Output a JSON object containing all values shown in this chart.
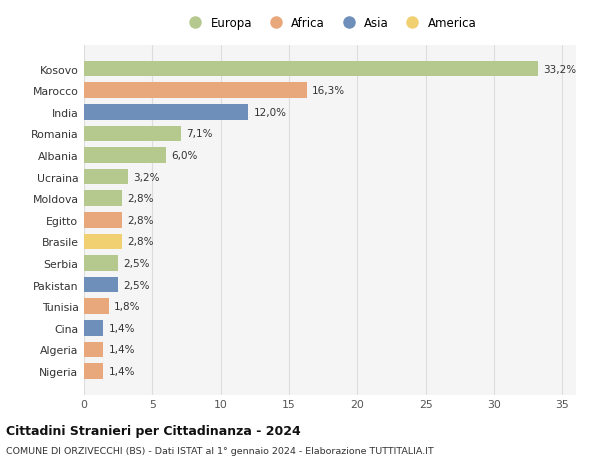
{
  "countries": [
    "Kosovo",
    "Marocco",
    "India",
    "Romania",
    "Albania",
    "Ucraina",
    "Moldova",
    "Egitto",
    "Brasile",
    "Serbia",
    "Pakistan",
    "Tunisia",
    "Cina",
    "Algeria",
    "Nigeria"
  ],
  "values": [
    33.2,
    16.3,
    12.0,
    7.1,
    6.0,
    3.2,
    2.8,
    2.8,
    2.8,
    2.5,
    2.5,
    1.8,
    1.4,
    1.4,
    1.4
  ],
  "labels": [
    "33,2%",
    "16,3%",
    "12,0%",
    "7,1%",
    "6,0%",
    "3,2%",
    "2,8%",
    "2,8%",
    "2,8%",
    "2,5%",
    "2,5%",
    "1,8%",
    "1,4%",
    "1,4%",
    "1,4%"
  ],
  "continents": [
    "Europa",
    "Africa",
    "Asia",
    "Europa",
    "Europa",
    "Europa",
    "Europa",
    "Africa",
    "America",
    "Europa",
    "Asia",
    "Africa",
    "Asia",
    "Africa",
    "Africa"
  ],
  "colors": {
    "Europa": "#b5c98e",
    "Africa": "#e8a87c",
    "Asia": "#6e8fba",
    "America": "#f0d070"
  },
  "background_color": "#ffffff",
  "plot_bg_color": "#f5f5f5",
  "title": "Cittadini Stranieri per Cittadinanza - 2024",
  "subtitle": "COMUNE DI ORZIVECCHI (BS) - Dati ISTAT al 1° gennaio 2024 - Elaborazione TUTTITALIA.IT",
  "xlim": [
    0,
    36
  ],
  "xticks": [
    0,
    5,
    10,
    15,
    20,
    25,
    30,
    35
  ],
  "legend_order": [
    "Europa",
    "Africa",
    "Asia",
    "America"
  ]
}
